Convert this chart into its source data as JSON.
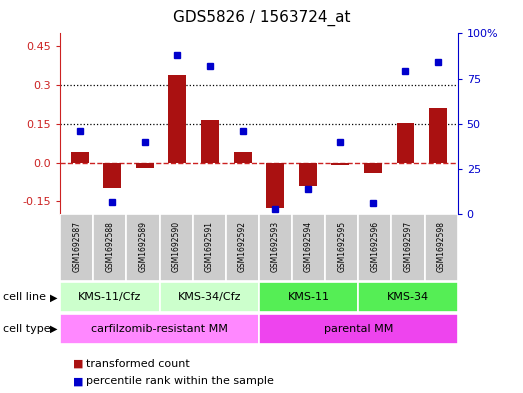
{
  "title": "GDS5826 / 1563724_at",
  "samples": [
    "GSM1692587",
    "GSM1692588",
    "GSM1692589",
    "GSM1692590",
    "GSM1692591",
    "GSM1692592",
    "GSM1692593",
    "GSM1692594",
    "GSM1692595",
    "GSM1692596",
    "GSM1692597",
    "GSM1692598"
  ],
  "transformed_count": [
    0.04,
    -0.1,
    -0.02,
    0.34,
    0.165,
    0.04,
    -0.175,
    -0.09,
    -0.01,
    -0.04,
    0.155,
    0.21
  ],
  "percentile_rank_pct": [
    46,
    7,
    40,
    88,
    82,
    46,
    3,
    14,
    40,
    6,
    79,
    84
  ],
  "cell_line_groups": [
    {
      "label": "KMS-11/Cfz",
      "start": 0,
      "end": 2,
      "color": "#bbffbb"
    },
    {
      "label": "KMS-34/Cfz",
      "start": 3,
      "end": 5,
      "color": "#bbffbb"
    },
    {
      "label": "KMS-11",
      "start": 6,
      "end": 8,
      "color": "#44dd44"
    },
    {
      "label": "KMS-34",
      "start": 9,
      "end": 11,
      "color": "#44dd44"
    }
  ],
  "cell_type_groups": [
    {
      "label": "carfilzomib-resistant MM",
      "start": 0,
      "end": 5,
      "color": "#ff77ff"
    },
    {
      "label": "parental MM",
      "start": 6,
      "end": 11,
      "color": "#ff77ff"
    }
  ],
  "ylim_left": [
    -0.2,
    0.5
  ],
  "ylim_right": [
    0,
    100
  ],
  "bar_color": "#aa1111",
  "dot_color": "#0000cc",
  "yticks_left": [
    -0.15,
    0.0,
    0.15,
    0.3,
    0.45
  ],
  "yticks_right": [
    0,
    25,
    50,
    75,
    100
  ],
  "hlines": [
    0.15,
    0.3
  ],
  "zero_line_color": "#cc2222",
  "sample_box_color": "#cccccc",
  "title_fontsize": 11,
  "tick_fontsize": 8,
  "label_fontsize": 8,
  "sample_fontsize": 5.5
}
